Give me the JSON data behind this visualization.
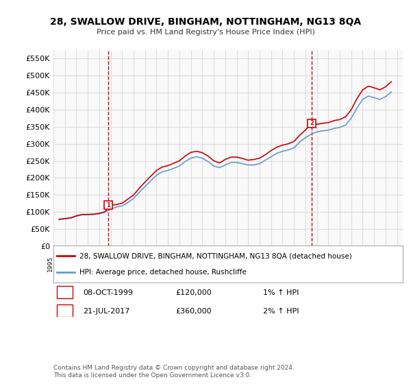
{
  "title": "28, SWALLOW DRIVE, BINGHAM, NOTTINGHAM, NG13 8QA",
  "subtitle": "Price paid vs. HM Land Registry's House Price Index (HPI)",
  "ylim": [
    0,
    575000
  ],
  "yticks": [
    0,
    50000,
    100000,
    150000,
    200000,
    250000,
    300000,
    350000,
    400000,
    450000,
    500000,
    550000
  ],
  "ytick_labels": [
    "£0",
    "£50K",
    "£100K",
    "£150K",
    "£200K",
    "£250K",
    "£300K",
    "£350K",
    "£400K",
    "£450K",
    "£500K",
    "£550K"
  ],
  "xlim_start": 1995.5,
  "xlim_end": 2025.5,
  "grid_color": "#dddddd",
  "bg_color": "#f9f9f9",
  "sale1_x": 1999.77,
  "sale1_y": 120000,
  "sale1_label": "1",
  "sale1_date": "08-OCT-1999",
  "sale1_price": "£120,000",
  "sale1_hpi": "1% ↑ HPI",
  "sale2_x": 2017.55,
  "sale2_y": 360000,
  "sale2_label": "2",
  "sale2_date": "21-JUL-2017",
  "sale2_price": "£360,000",
  "sale2_hpi": "2% ↑ HPI",
  "line1_label": "28, SWALLOW DRIVE, BINGHAM, NOTTINGHAM, NG13 8QA (detached house)",
  "line2_label": "HPI: Average price, detached house, Rushcliffe",
  "line1_color": "#cc0000",
  "line2_color": "#6699cc",
  "footer": "Contains HM Land Registry data © Crown copyright and database right 2024.\nThis data is licensed under the Open Government Licence v3.0.",
  "hpi_data": {
    "years": [
      1995.5,
      1996.0,
      1996.5,
      1997.0,
      1997.5,
      1998.0,
      1998.5,
      1999.0,
      1999.5,
      2000.0,
      2000.5,
      2001.0,
      2001.5,
      2002.0,
      2002.5,
      2003.0,
      2003.5,
      2004.0,
      2004.5,
      2005.0,
      2005.5,
      2006.0,
      2006.5,
      2007.0,
      2007.5,
      2008.0,
      2008.5,
      2009.0,
      2009.5,
      2010.0,
      2010.5,
      2011.0,
      2011.5,
      2012.0,
      2012.5,
      2013.0,
      2013.5,
      2014.0,
      2014.5,
      2015.0,
      2015.5,
      2016.0,
      2016.5,
      2017.0,
      2017.5,
      2018.0,
      2018.5,
      2019.0,
      2019.5,
      2020.0,
      2020.5,
      2021.0,
      2021.5,
      2022.0,
      2022.5,
      2023.0,
      2023.5,
      2024.0,
      2024.5
    ],
    "values": [
      78000,
      80000,
      82000,
      88000,
      92000,
      92000,
      93000,
      95000,
      100000,
      108000,
      115000,
      118000,
      128000,
      140000,
      158000,
      175000,
      192000,
      208000,
      218000,
      222000,
      228000,
      235000,
      248000,
      258000,
      262000,
      258000,
      248000,
      235000,
      230000,
      238000,
      245000,
      245000,
      242000,
      238000,
      238000,
      242000,
      252000,
      262000,
      272000,
      278000,
      282000,
      288000,
      305000,
      318000,
      328000,
      335000,
      338000,
      340000,
      345000,
      348000,
      355000,
      375000,
      405000,
      430000,
      440000,
      435000,
      430000,
      438000,
      452000
    ]
  },
  "price_line_data": {
    "years": [
      1995.5,
      1996.0,
      1996.5,
      1997.0,
      1997.5,
      1998.0,
      1998.5,
      1999.0,
      1999.5,
      2000.0,
      2000.5,
      2001.0,
      2001.5,
      2002.0,
      2002.5,
      2003.0,
      2003.5,
      2004.0,
      2004.5,
      2005.0,
      2005.5,
      2006.0,
      2006.5,
      2007.0,
      2007.5,
      2008.0,
      2008.5,
      2009.0,
      2009.5,
      2010.0,
      2010.5,
      2011.0,
      2011.5,
      2012.0,
      2012.5,
      2013.0,
      2013.5,
      2014.0,
      2014.5,
      2015.0,
      2015.5,
      2016.0,
      2016.5,
      2017.0,
      2017.5,
      2018.0,
      2018.5,
      2019.0,
      2019.5,
      2020.0,
      2020.5,
      2021.0,
      2021.5,
      2022.0,
      2022.5,
      2023.0,
      2023.5,
      2024.0,
      2024.5
    ],
    "values": [
      79000,
      81000,
      83000,
      89000,
      93000,
      93000,
      94000,
      96000,
      101000,
      120000,
      122000,
      126000,
      138000,
      150000,
      170000,
      188000,
      205000,
      222000,
      232000,
      236000,
      243000,
      250000,
      264000,
      275000,
      278000,
      274000,
      264000,
      250000,
      244000,
      254000,
      261000,
      261000,
      257000,
      252000,
      254000,
      258000,
      268000,
      280000,
      290000,
      296000,
      300000,
      307000,
      325000,
      340000,
      360000,
      357000,
      360000,
      362000,
      368000,
      371000,
      379000,
      400000,
      432000,
      458000,
      469000,
      464000,
      458000,
      467000,
      482000
    ]
  }
}
